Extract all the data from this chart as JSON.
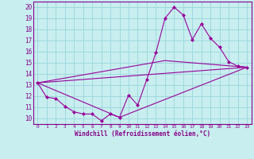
{
  "xlabel": "Windchill (Refroidissement éolien,°C)",
  "bg_color": "#c8eef0",
  "grid_color": "#a0d8dc",
  "line_color": "#990099",
  "xlim": [
    -0.5,
    23.5
  ],
  "ylim": [
    9.5,
    20.5
  ],
  "xticks": [
    0,
    1,
    2,
    3,
    4,
    5,
    6,
    7,
    8,
    9,
    10,
    11,
    12,
    13,
    14,
    15,
    16,
    17,
    18,
    19,
    20,
    21,
    22,
    23
  ],
  "yticks": [
    10,
    11,
    12,
    13,
    14,
    15,
    16,
    17,
    18,
    19,
    20
  ],
  "series1_x": [
    0,
    1,
    2,
    3,
    4,
    5,
    6,
    7,
    8,
    9,
    10,
    11,
    12,
    13,
    14,
    15,
    16,
    17,
    18,
    19,
    20,
    21,
    22,
    23
  ],
  "series1_y": [
    13.2,
    11.9,
    11.8,
    11.1,
    10.6,
    10.4,
    10.4,
    9.8,
    10.4,
    10.1,
    12.1,
    11.2,
    13.5,
    15.9,
    19.0,
    20.0,
    19.3,
    17.1,
    18.5,
    17.2,
    16.4,
    15.1,
    14.7,
    14.6
  ],
  "series2_x": [
    0,
    23
  ],
  "series2_y": [
    13.2,
    14.6
  ],
  "series3_x": [
    0,
    9,
    23
  ],
  "series3_y": [
    13.2,
    10.1,
    14.6
  ],
  "series4_x": [
    0,
    14,
    23
  ],
  "series4_y": [
    13.2,
    15.2,
    14.6
  ]
}
